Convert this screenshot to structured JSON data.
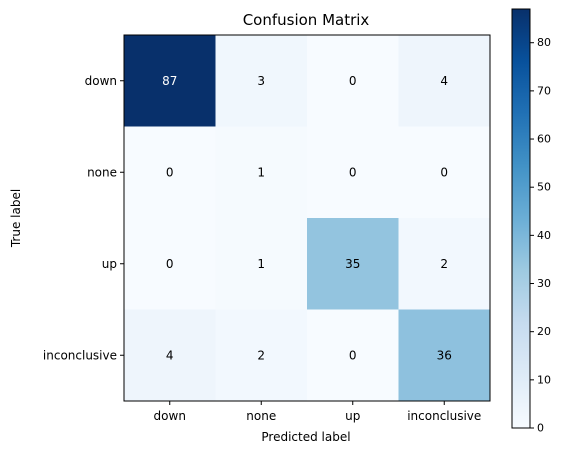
{
  "chart_data": {
    "type": "heatmap",
    "title": "Confusion Matrix",
    "xlabel": "Predicted label",
    "ylabel": "True label",
    "x_categories": [
      "down",
      "none",
      "up",
      "inconclusive"
    ],
    "y_categories": [
      "down",
      "none",
      "up",
      "inconclusive"
    ],
    "matrix": [
      [
        87,
        3,
        0,
        4
      ],
      [
        0,
        1,
        0,
        0
      ],
      [
        0,
        1,
        35,
        2
      ],
      [
        4,
        2,
        0,
        36
      ]
    ],
    "colormap": "Blues",
    "colorbar": {
      "range": [
        0,
        87
      ],
      "ticks": [
        0,
        10,
        20,
        30,
        40,
        50,
        60,
        70,
        80
      ]
    },
    "text_color_light": "#ffffff",
    "text_color_dark": "#000000"
  }
}
